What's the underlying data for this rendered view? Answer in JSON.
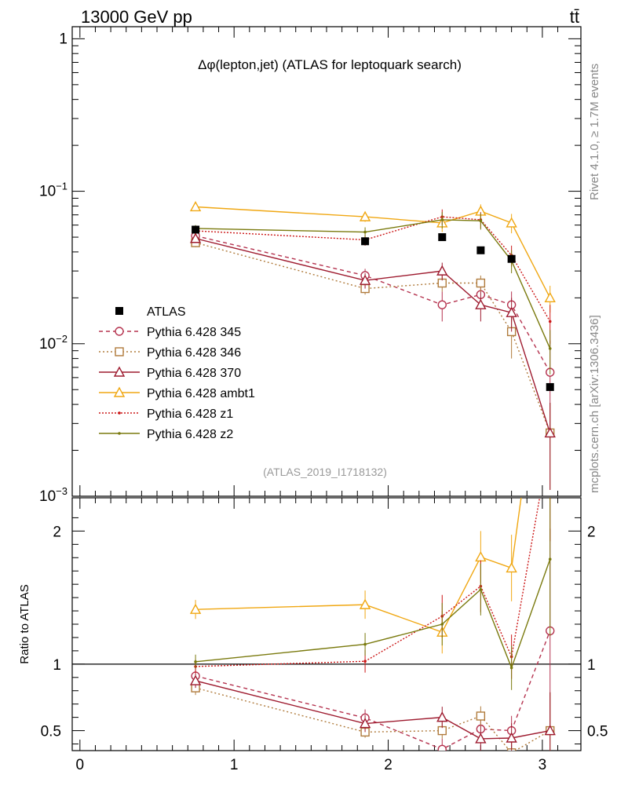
{
  "header": {
    "left_label": "13000 GeV pp",
    "right_label": "tt̄"
  },
  "side_labels": {
    "rivet": "Rivet 4.1.0, ≥ 1.7M events",
    "site": "mcplots.cern.ch [arXiv:1306.3436]"
  },
  "chart_data": {
    "type": "line",
    "title": "Δφ(lepton,jet) (ATLAS for leptoquark search)",
    "analysis_id": "(ATLAS_2019_I1718132)",
    "xlabel": "",
    "ylabel": "",
    "xlim": [
      -0.05,
      3.25
    ],
    "ylim": [
      0.001,
      1.2
    ],
    "yscale": "log",
    "x_ticks": [
      "0",
      "1",
      "2",
      "3"
    ],
    "y_ticks": [
      {
        "value": 1,
        "base": "1",
        "exp": ""
      },
      {
        "value": 0.1,
        "base": "10",
        "exp": "−1"
      },
      {
        "value": 0.01,
        "base": "10",
        "exp": "−2"
      },
      {
        "value": 0.001,
        "base": "10",
        "exp": "−3"
      }
    ],
    "x": [
      0.75,
      1.85,
      2.35,
      2.6,
      2.8,
      3.05
    ],
    "data": {
      "name": "ATLAS",
      "color": "#000000",
      "values": [
        0.056,
        0.047,
        0.05,
        0.041,
        0.036,
        0.0052
      ]
    },
    "series": [
      {
        "name": "Pythia 6.428 345",
        "color": "#b5334f",
        "dash": "5,4",
        "marker": "circle",
        "values": [
          0.051,
          0.028,
          0.018,
          0.021,
          0.018,
          0.0065
        ],
        "errors": [
          0.004,
          0.003,
          0.004,
          0.004,
          0.004,
          0.004
        ]
      },
      {
        "name": "Pythia 6.428 346",
        "color": "#b07b3c",
        "dash": "2,3",
        "marker": "square",
        "values": [
          0.046,
          0.023,
          0.025,
          0.025,
          0.012,
          0.0026
        ],
        "errors": [
          0.003,
          0.002,
          0.003,
          0.003,
          0.004,
          0.0015
        ]
      },
      {
        "name": "Pythia 6.428 370",
        "color": "#9e1b2f",
        "dash": "",
        "marker": "triangle",
        "values": [
          0.049,
          0.026,
          0.03,
          0.018,
          0.016,
          0.0026
        ],
        "errors": [
          0.003,
          0.003,
          0.004,
          0.004,
          0.004,
          0.0015
        ]
      },
      {
        "name": "Pythia 6.428 ambt1",
        "color": "#f0a712",
        "dash": "",
        "marker": "triangle",
        "values": [
          0.079,
          0.068,
          0.062,
          0.074,
          0.062,
          0.02
        ],
        "errors": [
          0.004,
          0.005,
          0.008,
          0.008,
          0.009,
          0.004
        ]
      },
      {
        "name": "Pythia 6.428 z1",
        "color": "#cc1818",
        "dash": "2,2",
        "marker": "dot",
        "values": [
          0.055,
          0.048,
          0.068,
          0.065,
          0.038,
          0.014
        ],
        "errors": [
          0.003,
          0.004,
          0.008,
          0.008,
          0.006,
          0.004
        ]
      },
      {
        "name": "Pythia 6.428 z2",
        "color": "#7a7a0e",
        "dash": "",
        "marker": "dot",
        "values": [
          0.057,
          0.054,
          0.065,
          0.064,
          0.035,
          0.0093
        ],
        "errors": [
          0.003,
          0.004,
          0.008,
          0.008,
          0.006,
          0.003
        ]
      }
    ],
    "ratio": {
      "ylabel": "Ratio to ATLAS",
      "ylim": [
        0.35,
        2.25
      ],
      "y_ticks": [
        "0.5",
        "1",
        "2"
      ],
      "y_tick_values": [
        0.5,
        1,
        2
      ]
    },
    "legend_position": "center-left"
  }
}
